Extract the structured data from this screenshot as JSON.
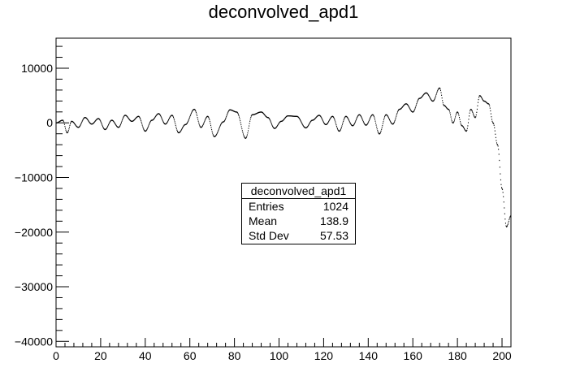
{
  "chart_data": {
    "type": "line",
    "title": "deconvolved_apd1",
    "xlabel": "",
    "ylabel": "",
    "xlim": [
      0,
      204
    ],
    "ylim": [
      -41000,
      15500
    ],
    "x_ticks": [
      0,
      20,
      40,
      60,
      80,
      100,
      120,
      140,
      160,
      180,
      200
    ],
    "y_ticks": [
      -40000,
      -30000,
      -20000,
      -10000,
      0,
      10000
    ],
    "x_tick_labels": [
      "0",
      "20",
      "40",
      "60",
      "80",
      "100",
      "120",
      "140",
      "160",
      "180",
      "200"
    ],
    "y_tick_labels": [
      "−40000",
      "−30000",
      "−20000",
      "−10000",
      "0",
      "10000"
    ],
    "grid": false,
    "series": [
      {
        "x": [
          0,
          3,
          5,
          7,
          10,
          13,
          16,
          19,
          22,
          25,
          28,
          31,
          34,
          37,
          40,
          43,
          46,
          49,
          52,
          55,
          58,
          62,
          65,
          68,
          71,
          75,
          78,
          81,
          85,
          88,
          92,
          95,
          98,
          101,
          104,
          108,
          112,
          115,
          118,
          121,
          124,
          127,
          130,
          133,
          136,
          139,
          142,
          145,
          148,
          151,
          154,
          157,
          160,
          163,
          166,
          169,
          172,
          174,
          176,
          178,
          180,
          182,
          184,
          186,
          188,
          190,
          192,
          194,
          196,
          198,
          200,
          202,
          204
        ],
        "y": [
          0,
          500,
          -1800,
          300,
          -800,
          1000,
          -200,
          800,
          -1200,
          500,
          -800,
          1400,
          300,
          1200,
          -1500,
          500,
          1700,
          -200,
          1400,
          -1800,
          -300,
          2500,
          -800,
          1200,
          -2500,
          200,
          2400,
          2000,
          -2800,
          1500,
          2000,
          1000,
          -1000,
          300,
          1300,
          1200,
          -900,
          500,
          1400,
          -300,
          1200,
          -1500,
          1200,
          -500,
          1500,
          -400,
          1500,
          -2000,
          1500,
          -200,
          2500,
          3500,
          2000,
          4500,
          5500,
          4000,
          6400,
          3200,
          2500,
          0,
          2000,
          -500,
          -1500,
          2500,
          1000,
          5000,
          4000,
          3500,
          0,
          -4000,
          -12000,
          -19000,
          -17000
        ]
      }
    ],
    "stats_box": {
      "title": "deconvolved_apd1",
      "rows": [
        {
          "label": "Entries",
          "value": "1024"
        },
        {
          "label": "Mean",
          "value": "138.9"
        },
        {
          "label": "Std Dev",
          "value": "57.53"
        }
      ]
    }
  }
}
